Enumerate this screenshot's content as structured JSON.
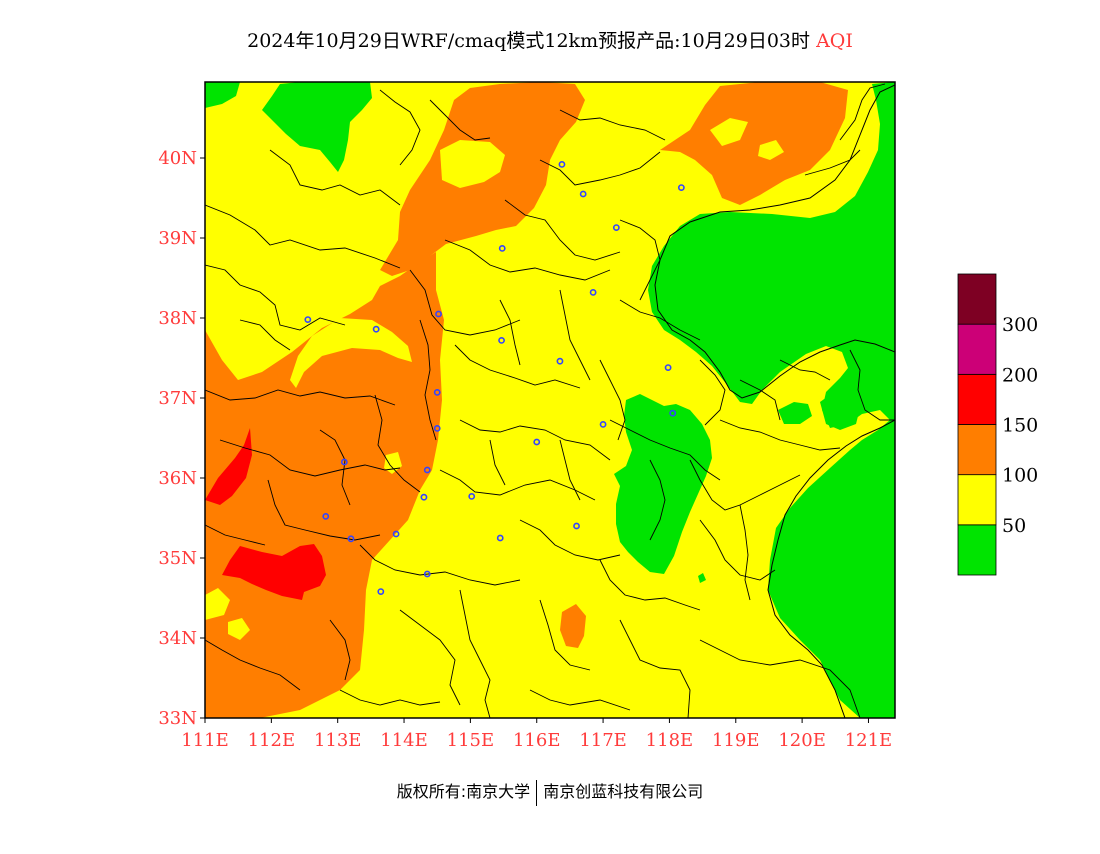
{
  "header": {
    "title_main": "2024年10月29日WRF/cmaq模式12km预报产品:10月29日03时",
    "title_var": "AQI"
  },
  "map": {
    "lon_labels": [
      "111E",
      "112E",
      "113E",
      "114E",
      "115E",
      "116E",
      "117E",
      "118E",
      "119E",
      "120E",
      "121E"
    ],
    "lat_labels": [
      "40N",
      "39N",
      "38N",
      "37N",
      "36N",
      "35N",
      "34N",
      "33N"
    ],
    "lon_range": [
      111,
      121.4
    ],
    "lat_range": [
      33,
      40.95
    ],
    "colors": {
      "good": "#00e400",
      "moderate": "#ffff00",
      "usg": "#ff7e00",
      "unhealthy": "#ff0000",
      "very_unhealthy": "#cc0077",
      "hazardous": "#7e0023",
      "boundary": "#000000",
      "station": "#3344ff"
    },
    "stations": [
      [
        116.38,
        39.92
      ],
      [
        116.7,
        39.55
      ],
      [
        118.18,
        39.63
      ],
      [
        117.2,
        39.13
      ],
      [
        115.48,
        38.87
      ],
      [
        116.85,
        38.32
      ],
      [
        112.55,
        37.98
      ],
      [
        113.58,
        37.86
      ],
      [
        114.52,
        38.05
      ],
      [
        115.47,
        37.72
      ],
      [
        116.35,
        37.46
      ],
      [
        117.98,
        37.38
      ],
      [
        114.5,
        37.07
      ],
      [
        114.5,
        36.62
      ],
      [
        118.05,
        36.81
      ],
      [
        117.0,
        36.67
      ],
      [
        116.0,
        36.45
      ],
      [
        113.1,
        36.2
      ],
      [
        114.35,
        36.1
      ],
      [
        114.3,
        35.76
      ],
      [
        115.02,
        35.77
      ],
      [
        112.82,
        35.52
      ],
      [
        113.2,
        35.24
      ],
      [
        113.88,
        35.3
      ],
      [
        115.45,
        35.25
      ],
      [
        116.6,
        35.4
      ],
      [
        114.35,
        34.8
      ],
      [
        113.65,
        34.58
      ]
    ]
  },
  "legend": {
    "colors": [
      "#00e400",
      "#ffff00",
      "#ff7e00",
      "#ff0000",
      "#cc0077",
      "#7e0023"
    ],
    "labels": [
      "50",
      "100",
      "150",
      "200",
      "300"
    ]
  },
  "footer": {
    "left": "版权所有:南京大学",
    "right": "南京创蓝科技有限公司"
  }
}
